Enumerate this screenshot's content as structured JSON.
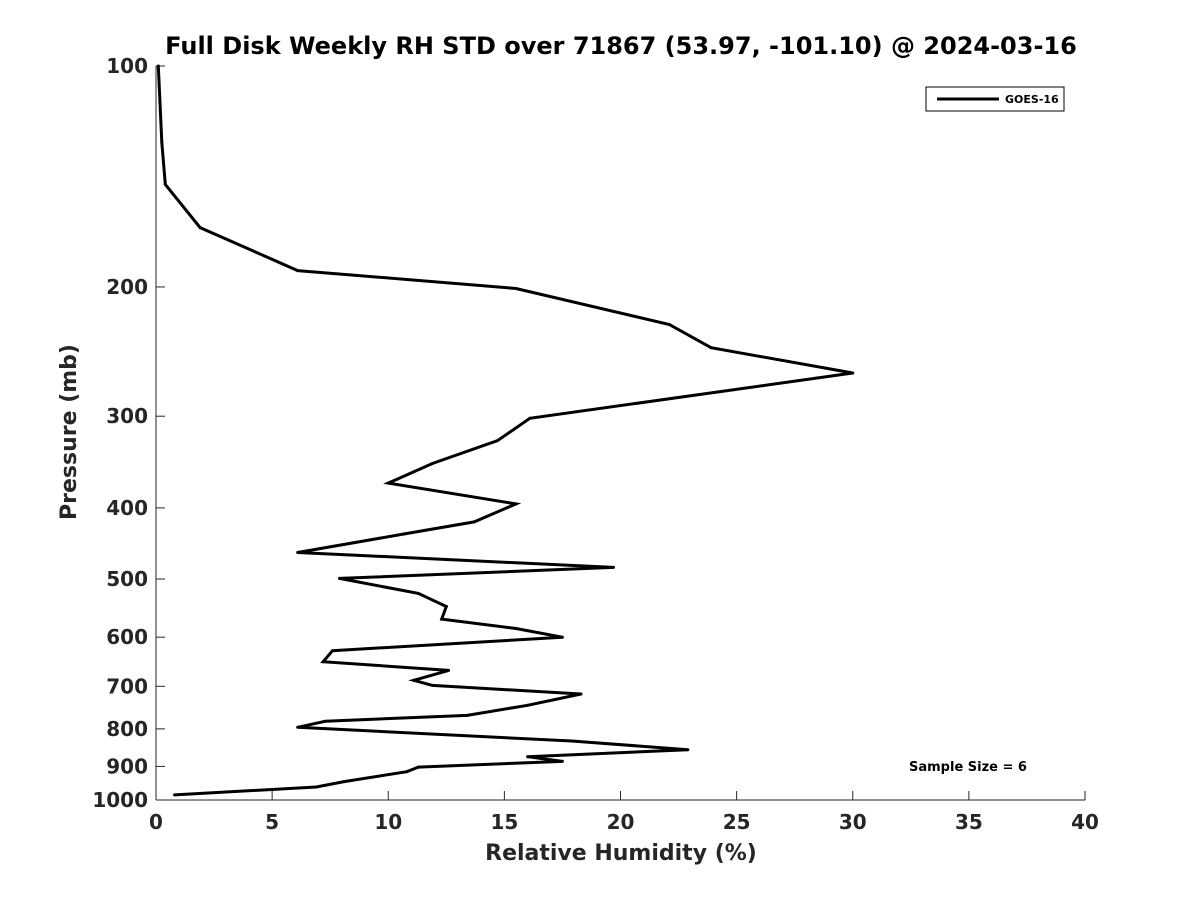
{
  "chart_data": {
    "type": "line",
    "title": "Full Disk Weekly RH STD over 71867 (53.97, -101.10) @ 2024-03-16",
    "xlabel": "Relative Humidity (%)",
    "ylabel": "Pressure (mb)",
    "xlim": [
      0,
      40
    ],
    "ylim": [
      100,
      1000
    ],
    "y_scale": "log",
    "y_reversed": true,
    "grid": false,
    "legend_position": "top-right",
    "xticks": [
      "0",
      "5",
      "10",
      "15",
      "20",
      "25",
      "30",
      "35",
      "40"
    ],
    "yticks": [
      "100",
      "200",
      "300",
      "400",
      "500",
      "600",
      "700",
      "800",
      "900",
      "1000"
    ],
    "annotation": "Sample Size = 6",
    "series": [
      {
        "name": "GOES-16",
        "color": "#000000",
        "x": [
          0.1,
          0.25,
          0.4,
          1.9,
          6.1,
          15.5,
          22.1,
          23.9,
          30.0,
          16.1,
          14.7,
          11.9,
          10.0,
          15.5,
          13.7,
          10.7,
          6.1,
          19.7,
          7.9,
          11.3,
          12.5,
          12.3,
          15.5,
          17.5,
          7.6,
          7.2,
          12.6,
          11.1,
          11.9,
          18.3,
          16.0,
          13.4,
          7.3,
          6.1,
          17.9,
          22.9,
          16.0,
          17.5,
          11.3,
          10.8,
          8.1,
          6.9,
          0.8
        ],
        "y": [
          100,
          127,
          145,
          166,
          190,
          201,
          225,
          242,
          262,
          302,
          324,
          348,
          370,
          395,
          418,
          434,
          460,
          482,
          499,
          523,
          545,
          567,
          584,
          600,
          626,
          648,
          666,
          687,
          698,
          717,
          743,
          767,
          781,
          796,
          831,
          854,
          873,
          886,
          902,
          915,
          944,
          960,
          984
        ]
      }
    ]
  }
}
